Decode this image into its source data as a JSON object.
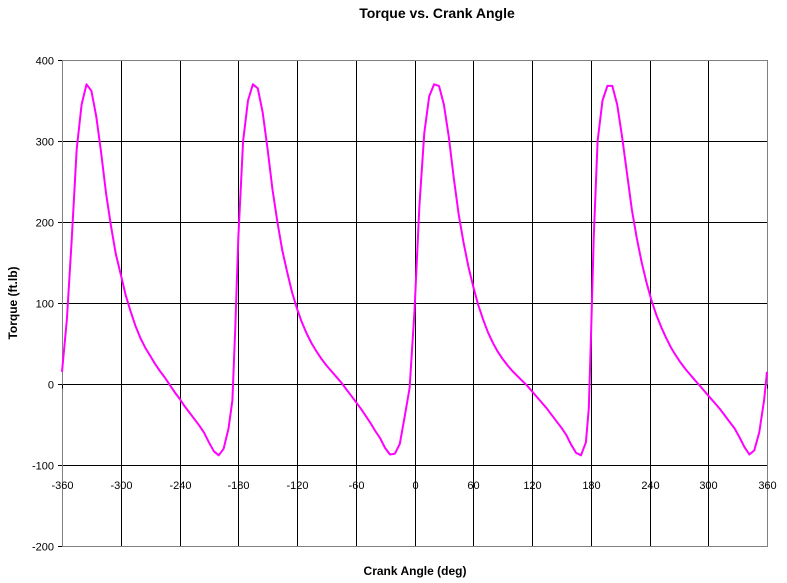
{
  "chart_data": {
    "type": "line",
    "title": "Torque vs. Crank Angle",
    "xlabel": "Crank Angle (deg)",
    "ylabel": "Torque (ft.lb)",
    "xlim": [
      -360,
      360
    ],
    "ylim": [
      -200,
      400
    ],
    "x_ticks": [
      -360,
      -300,
      -240,
      -180,
      -120,
      -60,
      0,
      60,
      120,
      180,
      240,
      300,
      360
    ],
    "y_ticks": [
      -200,
      -100,
      0,
      100,
      200,
      300,
      400
    ],
    "grid": true,
    "legend": "none",
    "series": [
      {
        "color": "#ff00ff",
        "points": [
          [
            -360,
            15
          ],
          [
            -355,
            80
          ],
          [
            -350,
            180
          ],
          [
            -345,
            290
          ],
          [
            -340,
            345
          ],
          [
            -335,
            370
          ],
          [
            -330,
            362
          ],
          [
            -325,
            330
          ],
          [
            -320,
            285
          ],
          [
            -315,
            235
          ],
          [
            -310,
            195
          ],
          [
            -305,
            160
          ],
          [
            -300,
            135
          ],
          [
            -295,
            110
          ],
          [
            -290,
            90
          ],
          [
            -285,
            72
          ],
          [
            -280,
            57
          ],
          [
            -275,
            45
          ],
          [
            -270,
            35
          ],
          [
            -265,
            25
          ],
          [
            -260,
            16
          ],
          [
            -255,
            8
          ],
          [
            -250,
            -1
          ],
          [
            -245,
            -10
          ],
          [
            -240,
            -18
          ],
          [
            -235,
            -27
          ],
          [
            -230,
            -35
          ],
          [
            -225,
            -43
          ],
          [
            -220,
            -51
          ],
          [
            -215,
            -60
          ],
          [
            -210,
            -72
          ],
          [
            -205,
            -83
          ],
          [
            -200,
            -88
          ],
          [
            -195,
            -80
          ],
          [
            -190,
            -55
          ],
          [
            -186,
            -20
          ],
          [
            -183,
            70
          ],
          [
            -180,
            180
          ],
          [
            -175,
            300
          ],
          [
            -170,
            350
          ],
          [
            -165,
            370
          ],
          [
            -160,
            365
          ],
          [
            -155,
            335
          ],
          [
            -150,
            290
          ],
          [
            -145,
            240
          ],
          [
            -140,
            200
          ],
          [
            -135,
            165
          ],
          [
            -130,
            138
          ],
          [
            -125,
            113
          ],
          [
            -120,
            93
          ],
          [
            -115,
            76
          ],
          [
            -110,
            62
          ],
          [
            -105,
            50
          ],
          [
            -100,
            40
          ],
          [
            -95,
            31
          ],
          [
            -90,
            23
          ],
          [
            -85,
            16
          ],
          [
            -80,
            9
          ],
          [
            -75,
            2
          ],
          [
            -70,
            -6
          ],
          [
            -65,
            -14
          ],
          [
            -60,
            -22
          ],
          [
            -55,
            -30
          ],
          [
            -50,
            -39
          ],
          [
            -45,
            -48
          ],
          [
            -40,
            -58
          ],
          [
            -35,
            -67
          ],
          [
            -30,
            -79
          ],
          [
            -25,
            -87
          ],
          [
            -20,
            -86
          ],
          [
            -15,
            -74
          ],
          [
            -10,
            -40
          ],
          [
            -5,
            -5
          ],
          [
            0,
            90
          ],
          [
            5,
            220
          ],
          [
            10,
            310
          ],
          [
            15,
            355
          ],
          [
            20,
            370
          ],
          [
            25,
            368
          ],
          [
            30,
            345
          ],
          [
            35,
            305
          ],
          [
            40,
            255
          ],
          [
            45,
            210
          ],
          [
            50,
            175
          ],
          [
            55,
            145
          ],
          [
            60,
            120
          ],
          [
            65,
            98
          ],
          [
            70,
            80
          ],
          [
            75,
            64
          ],
          [
            80,
            51
          ],
          [
            85,
            40
          ],
          [
            90,
            31
          ],
          [
            95,
            23
          ],
          [
            100,
            16
          ],
          [
            105,
            10
          ],
          [
            110,
            4
          ],
          [
            115,
            -2
          ],
          [
            120,
            -9
          ],
          [
            125,
            -16
          ],
          [
            130,
            -23
          ],
          [
            135,
            -30
          ],
          [
            140,
            -38
          ],
          [
            145,
            -46
          ],
          [
            150,
            -54
          ],
          [
            155,
            -63
          ],
          [
            160,
            -75
          ],
          [
            165,
            -85
          ],
          [
            170,
            -88
          ],
          [
            175,
            -72
          ],
          [
            178,
            -30
          ],
          [
            180,
            50
          ],
          [
            183,
            180
          ],
          [
            187,
            300
          ],
          [
            192,
            350
          ],
          [
            197,
            368
          ],
          [
            202,
            368
          ],
          [
            207,
            345
          ],
          [
            212,
            305
          ],
          [
            217,
            260
          ],
          [
            222,
            215
          ],
          [
            227,
            180
          ],
          [
            232,
            150
          ],
          [
            237,
            125
          ],
          [
            242,
            103
          ],
          [
            247,
            85
          ],
          [
            252,
            70
          ],
          [
            257,
            57
          ],
          [
            262,
            45
          ],
          [
            267,
            35
          ],
          [
            272,
            26
          ],
          [
            277,
            18
          ],
          [
            282,
            11
          ],
          [
            287,
            4
          ],
          [
            292,
            -3
          ],
          [
            297,
            -10
          ],
          [
            302,
            -17
          ],
          [
            307,
            -24
          ],
          [
            312,
            -31
          ],
          [
            317,
            -39
          ],
          [
            322,
            -47
          ],
          [
            327,
            -55
          ],
          [
            332,
            -66
          ],
          [
            337,
            -78
          ],
          [
            342,
            -87
          ],
          [
            347,
            -82
          ],
          [
            352,
            -60
          ],
          [
            357,
            -20
          ],
          [
            360,
            15
          ]
        ]
      }
    ]
  }
}
